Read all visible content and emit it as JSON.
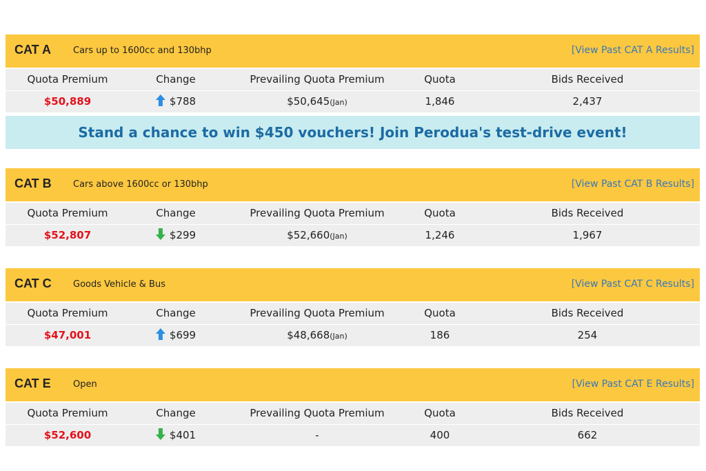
{
  "sections": [
    {
      "category": "CAT A",
      "description": "Cars up to 1600cc and 130bhp",
      "link": "[View Past CAT A Results]",
      "columns": [
        "Quota Premium",
        "Change",
        "Prevailing Quota Premium",
        "Quota",
        "Bids Received"
      ],
      "quota_premium": "$50,889",
      "change_direction": "up",
      "change": "$788",
      "prevailing_premium": "$50,645",
      "prevailing_month": "(Jan)",
      "quota": "1,846",
      "bids_received": "2,437"
    },
    {
      "category": "CAT B",
      "description": "Cars above 1600cc or 130bhp",
      "link": "[View Past CAT B Results]",
      "columns": [
        "Quota Premium",
        "Change",
        "Prevailing Quota Premium",
        "Quota",
        "Bids Received"
      ],
      "quota_premium": "$52,807",
      "change_direction": "down",
      "change": "$299",
      "prevailing_premium": "$52,660",
      "prevailing_month": "(Jan)",
      "quota": "1,246",
      "bids_received": "1,967"
    },
    {
      "category": "CAT C",
      "description": "Goods Vehicle & Bus",
      "link": "[View Past CAT C Results]",
      "columns": [
        "Quota Premium",
        "Change",
        "Prevailing Quota Premium",
        "Quota",
        "Bids Received"
      ],
      "quota_premium": "$47,001",
      "change_direction": "up",
      "change": "$699",
      "prevailing_premium": "$48,668",
      "prevailing_month": "(Jan)",
      "quota": "186",
      "bids_received": "254"
    },
    {
      "category": "CAT E",
      "description": "Open",
      "link": "[View Past CAT E Results]",
      "columns": [
        "Quota Premium",
        "Change",
        "Prevailing Quota Premium",
        "Quota",
        "Bids Received"
      ],
      "quota_premium": "$52,600",
      "change_direction": "down",
      "change": "$401",
      "prevailing_premium": "-",
      "prevailing_month": null,
      "quota": "400",
      "bids_received": "662"
    }
  ],
  "banner": "Stand a chance to win $450 vouchers! Join Perodua's test-drive event!"
}
